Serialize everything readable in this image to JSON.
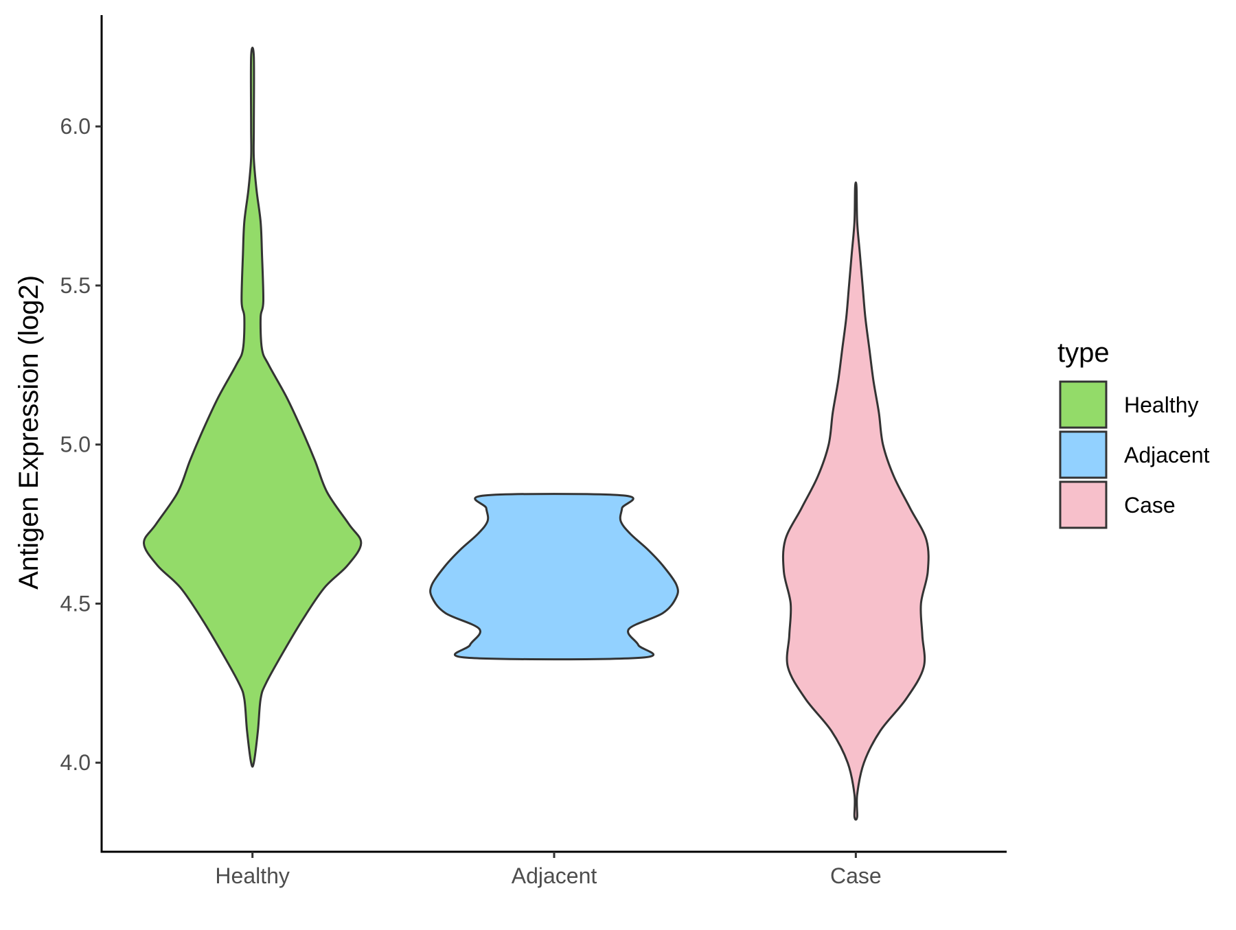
{
  "chart_data": {
    "type": "violin",
    "title": "",
    "xlabel": "",
    "ylabel": "Antigen Expression (log2)",
    "ylim": [
      3.72,
      6.35
    ],
    "yticks": [
      "4.0",
      "4.5",
      "5.0",
      "5.5",
      "6.0"
    ],
    "grid": false,
    "legend_position": "right",
    "legend_title": "type",
    "categories": [
      "Healthy",
      "Adjacent",
      "Case"
    ],
    "series": [
      {
        "name": "Healthy",
        "color": "#93DB69",
        "range": [
          4.0,
          6.22
        ],
        "profile": [
          [
            4.0,
            0.01
          ],
          [
            4.1,
            0.04
          ],
          [
            4.2,
            0.06
          ],
          [
            4.25,
            0.1
          ],
          [
            4.35,
            0.23
          ],
          [
            4.45,
            0.37
          ],
          [
            4.55,
            0.53
          ],
          [
            4.62,
            0.7
          ],
          [
            4.69,
            0.8
          ],
          [
            4.75,
            0.71
          ],
          [
            4.85,
            0.55
          ],
          [
            4.95,
            0.46
          ],
          [
            5.05,
            0.36
          ],
          [
            5.15,
            0.25
          ],
          [
            5.25,
            0.12
          ],
          [
            5.3,
            0.07
          ],
          [
            5.4,
            0.06
          ],
          [
            5.45,
            0.08
          ],
          [
            5.6,
            0.07
          ],
          [
            5.7,
            0.06
          ],
          [
            5.8,
            0.03
          ],
          [
            5.9,
            0.01
          ],
          [
            6.0,
            0.01
          ],
          [
            6.22,
            0.01
          ]
        ]
      },
      {
        "name": "Adjacent",
        "color": "#92D1FF",
        "range": [
          4.33,
          4.84
        ],
        "profile": [
          [
            4.33,
            0.64
          ],
          [
            4.37,
            0.62
          ],
          [
            4.42,
            0.55
          ],
          [
            4.47,
            0.8
          ],
          [
            4.52,
            0.9
          ],
          [
            4.56,
            0.9
          ],
          [
            4.62,
            0.8
          ],
          [
            4.67,
            0.69
          ],
          [
            4.72,
            0.56
          ],
          [
            4.76,
            0.49
          ],
          [
            4.8,
            0.5
          ],
          [
            4.84,
            0.51
          ]
        ]
      },
      {
        "name": "Case",
        "color": "#F7C0CB",
        "range": [
          3.83,
          5.81
        ],
        "profile": [
          [
            3.83,
            0.01
          ],
          [
            3.9,
            0.01
          ],
          [
            4.0,
            0.06
          ],
          [
            4.1,
            0.18
          ],
          [
            4.2,
            0.37
          ],
          [
            4.3,
            0.5
          ],
          [
            4.4,
            0.49
          ],
          [
            4.5,
            0.48
          ],
          [
            4.6,
            0.53
          ],
          [
            4.7,
            0.52
          ],
          [
            4.8,
            0.4
          ],
          [
            4.9,
            0.28
          ],
          [
            5.0,
            0.2
          ],
          [
            5.1,
            0.17
          ],
          [
            5.2,
            0.13
          ],
          [
            5.3,
            0.1
          ],
          [
            5.4,
            0.07
          ],
          [
            5.5,
            0.05
          ],
          [
            5.6,
            0.03
          ],
          [
            5.7,
            0.01
          ],
          [
            5.81,
            0.005
          ]
        ]
      }
    ]
  }
}
